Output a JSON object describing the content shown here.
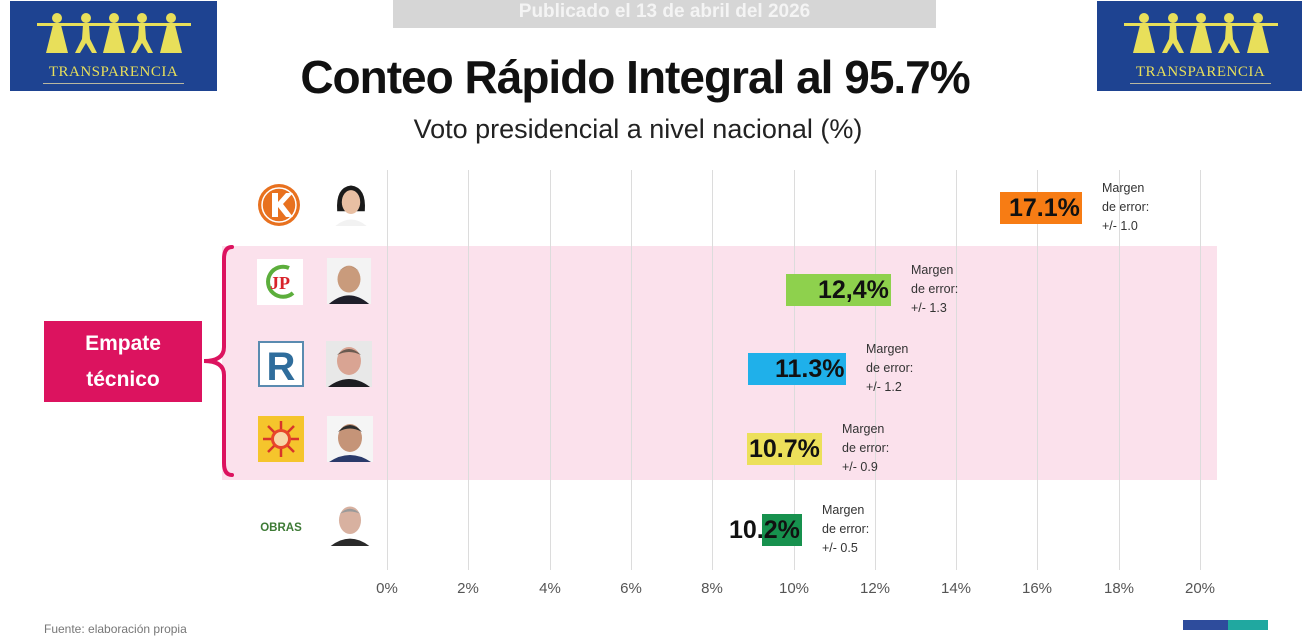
{
  "header": {
    "published": "Publicado el 13 de abril del 2026",
    "title": "Conteo Rápido Integral al 95.7%",
    "subtitle": "Voto presidencial a nivel nacional (%)",
    "logo_left_text": "TRANSPARENCIA",
    "logo_right_text": "TRANSPARENCIA"
  },
  "tie_label": {
    "line1": "Empate",
    "line2": "técnico"
  },
  "footer": {
    "source_partial": "Fuente: elaboración propia"
  },
  "colors": {
    "tie_box": "#dc135f",
    "tie_band": "#fbe1ec",
    "logo_bg": "#1e4391",
    "logo_fg": "#e8df5a"
  },
  "chart_data": {
    "type": "bar",
    "orientation": "horizontal",
    "title": "Conteo Rápido Integral al 95.7%",
    "subtitle": "Voto presidencial a nivel nacional (%)",
    "xlabel": "",
    "ylabel": "",
    "xlim": [
      0,
      20
    ],
    "xticks": [
      0,
      2,
      4,
      6,
      8,
      10,
      12,
      14,
      16,
      18,
      20
    ],
    "xtick_labels": [
      "0%",
      "2%",
      "4%",
      "6%",
      "8%",
      "10%",
      "12%",
      "14%",
      "16%",
      "18%",
      "20%"
    ],
    "grid": true,
    "categories": [
      "fuerza-popular",
      "juntos-por-el-peru",
      "renovacion-popular",
      "partido-sol",
      "obras"
    ],
    "party_icons": [
      "K",
      "JP",
      "R",
      "sun",
      "OBRAS"
    ],
    "values": [
      17.1,
      12.4,
      11.3,
      10.7,
      10.2
    ],
    "labels": [
      "17.1%",
      "12,4%",
      "11.3%",
      "10.7%",
      "10.2%"
    ],
    "bar_colors": [
      "#f77c14",
      "#8ed14d",
      "#1fb0ea",
      "#ece05a",
      "#17914e"
    ],
    "margin_title": [
      "Margen",
      "Margen",
      "Margen",
      "Margen",
      "Margen"
    ],
    "margin_sub": [
      "de error:",
      "de error:",
      "de error:",
      "de error:",
      "de error:"
    ],
    "margin_values": [
      "+/- 1.0",
      "+/- 1.3",
      "+/- 1.2",
      "+/- 0.9",
      "+/- 0.5"
    ],
    "technical_tie": [
      false,
      true,
      true,
      true,
      false
    ]
  }
}
